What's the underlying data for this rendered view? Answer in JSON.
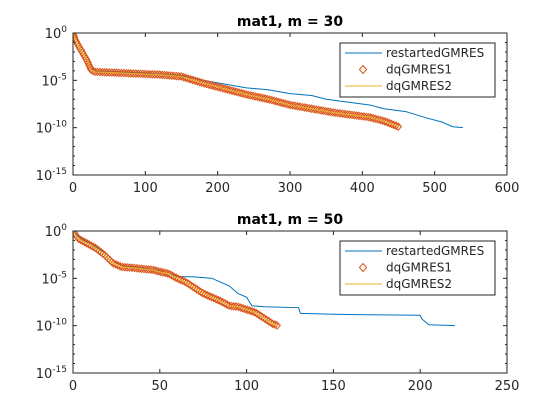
{
  "figure": {
    "background": "#ffffff"
  },
  "chart_data": [
    {
      "type": "line",
      "title": "mat1, m = 30",
      "xlabel": "",
      "ylabel": "",
      "y_scale": "log",
      "xlim": [
        0,
        600
      ],
      "ylim_exp": [
        -15,
        0
      ],
      "x_ticks": [
        "0",
        "100",
        "200",
        "300",
        "400",
        "500",
        "600"
      ],
      "x_tick_values": [
        0,
        100,
        200,
        300,
        400,
        500,
        600
      ],
      "y_ticks_exp": [
        "0",
        "-5",
        "-10",
        "-15"
      ],
      "y_tick_base": "10",
      "legend": {
        "position": "top-right",
        "entries": [
          "restartedGMRES",
          "dqGMRES1",
          "dqGMRES2"
        ]
      },
      "series": [
        {
          "name": "restartedGMRES",
          "style": "line",
          "color": "#0072BD",
          "points": [
            [
              0,
              0
            ],
            [
              3,
              -0.7
            ],
            [
              8,
              -1.4
            ],
            [
              14,
              -2.2
            ],
            [
              20,
              -3.0
            ],
            [
              25,
              -3.8
            ],
            [
              30,
              -4.05
            ],
            [
              60,
              -4.1
            ],
            [
              90,
              -4.2
            ],
            [
              120,
              -4.35
            ],
            [
              150,
              -4.5
            ],
            [
              180,
              -5.0
            ],
            [
              210,
              -5.4
            ],
            [
              240,
              -5.8
            ],
            [
              270,
              -6.0
            ],
            [
              300,
              -6.4
            ],
            [
              330,
              -6.6
            ],
            [
              350,
              -7.0
            ],
            [
              380,
              -7.3
            ],
            [
              410,
              -7.6
            ],
            [
              430,
              -8.0
            ],
            [
              460,
              -8.3
            ],
            [
              490,
              -9.0
            ],
            [
              510,
              -9.4
            ],
            [
              525,
              -9.9
            ],
            [
              539,
              -10.0
            ]
          ]
        },
        {
          "name": "dqGMRES1",
          "style": "markers",
          "color": "#D95319",
          "points": [
            [
              0,
              0
            ],
            [
              3,
              -0.7
            ],
            [
              8,
              -1.4
            ],
            [
              14,
              -2.2
            ],
            [
              20,
              -3.0
            ],
            [
              25,
              -3.9
            ],
            [
              30,
              -4.1
            ],
            [
              60,
              -4.2
            ],
            [
              90,
              -4.3
            ],
            [
              120,
              -4.4
            ],
            [
              150,
              -4.6
            ],
            [
              180,
              -5.3
            ],
            [
              210,
              -5.9
            ],
            [
              240,
              -6.5
            ],
            [
              270,
              -7.0
            ],
            [
              300,
              -7.6
            ],
            [
              330,
              -8.0
            ],
            [
              360,
              -8.4
            ],
            [
              390,
              -8.7
            ],
            [
              410,
              -8.9
            ],
            [
              430,
              -9.3
            ],
            [
              450,
              -9.9
            ]
          ]
        },
        {
          "name": "dqGMRES2",
          "style": "line",
          "color": "#EDB120",
          "points": [
            [
              0,
              0
            ],
            [
              3,
              -0.7
            ],
            [
              8,
              -1.4
            ],
            [
              14,
              -2.2
            ],
            [
              20,
              -3.0
            ],
            [
              25,
              -3.9
            ],
            [
              30,
              -4.1
            ],
            [
              60,
              -4.2
            ],
            [
              90,
              -4.3
            ],
            [
              120,
              -4.4
            ],
            [
              150,
              -4.6
            ],
            [
              180,
              -5.3
            ],
            [
              210,
              -5.9
            ],
            [
              240,
              -6.5
            ],
            [
              270,
              -7.0
            ],
            [
              300,
              -7.6
            ],
            [
              330,
              -8.0
            ],
            [
              360,
              -8.4
            ],
            [
              390,
              -8.7
            ],
            [
              410,
              -8.9
            ],
            [
              430,
              -9.3
            ],
            [
              450,
              -9.9
            ]
          ]
        }
      ]
    },
    {
      "type": "line",
      "title": "mat1, m = 50",
      "xlabel": "",
      "ylabel": "",
      "y_scale": "log",
      "xlim": [
        0,
        250
      ],
      "ylim_exp": [
        -15,
        0
      ],
      "x_ticks": [
        "0",
        "50",
        "100",
        "150",
        "200",
        "250"
      ],
      "x_tick_values": [
        0,
        50,
        100,
        150,
        200,
        250
      ],
      "y_ticks_exp": [
        "0",
        "-5",
        "-10",
        "-15"
      ],
      "y_tick_base": "10",
      "legend": {
        "position": "top-right",
        "entries": [
          "restartedGMRES",
          "dqGMRES1",
          "dqGMRES2"
        ]
      },
      "series": [
        {
          "name": "restartedGMRES",
          "style": "line",
          "color": "#0072BD",
          "points": [
            [
              0,
              0
            ],
            [
              5,
              -0.9
            ],
            [
              10,
              -1.3
            ],
            [
              15,
              -1.9
            ],
            [
              20,
              -2.5
            ],
            [
              25,
              -3.4
            ],
            [
              30,
              -3.7
            ],
            [
              40,
              -3.9
            ],
            [
              50,
              -4.2
            ],
            [
              55,
              -4.5
            ],
            [
              60,
              -4.8
            ],
            [
              70,
              -4.85
            ],
            [
              80,
              -5.0
            ],
            [
              90,
              -5.8
            ],
            [
              95,
              -6.6
            ],
            [
              100,
              -7.0
            ],
            [
              103,
              -7.9
            ],
            [
              110,
              -8.0
            ],
            [
              130,
              -8.1
            ],
            [
              131,
              -8.7
            ],
            [
              150,
              -8.8
            ],
            [
              170,
              -8.85
            ],
            [
              200,
              -8.9
            ],
            [
              201,
              -9.3
            ],
            [
              205,
              -9.9
            ],
            [
              220,
              -10.0
            ]
          ]
        },
        {
          "name": "dqGMRES1",
          "style": "markers",
          "color": "#D95319",
          "points": [
            [
              0,
              0
            ],
            [
              3,
              -0.8
            ],
            [
              8,
              -1.3
            ],
            [
              13,
              -1.8
            ],
            [
              18,
              -2.5
            ],
            [
              23,
              -3.4
            ],
            [
              28,
              -3.8
            ],
            [
              35,
              -3.9
            ],
            [
              40,
              -4.0
            ],
            [
              46,
              -4.1
            ],
            [
              50,
              -4.3
            ],
            [
              55,
              -4.5
            ],
            [
              60,
              -5.0
            ],
            [
              65,
              -5.4
            ],
            [
              70,
              -6.0
            ],
            [
              75,
              -6.6
            ],
            [
              80,
              -7.0
            ],
            [
              85,
              -7.4
            ],
            [
              90,
              -7.9
            ],
            [
              95,
              -8.0
            ],
            [
              100,
              -8.3
            ],
            [
              105,
              -8.6
            ],
            [
              110,
              -9.2
            ],
            [
              115,
              -9.8
            ],
            [
              118,
              -10.0
            ]
          ]
        },
        {
          "name": "dqGMRES2",
          "style": "line",
          "color": "#EDB120",
          "points": [
            [
              0,
              0
            ],
            [
              3,
              -0.8
            ],
            [
              8,
              -1.3
            ],
            [
              13,
              -1.8
            ],
            [
              18,
              -2.5
            ],
            [
              23,
              -3.4
            ],
            [
              28,
              -3.8
            ],
            [
              35,
              -3.9
            ],
            [
              40,
              -4.0
            ],
            [
              46,
              -4.1
            ],
            [
              50,
              -4.3
            ],
            [
              55,
              -4.5
            ],
            [
              60,
              -5.0
            ],
            [
              65,
              -5.4
            ],
            [
              70,
              -6.0
            ],
            [
              75,
              -6.6
            ],
            [
              80,
              -7.0
            ],
            [
              85,
              -7.4
            ],
            [
              90,
              -7.9
            ],
            [
              95,
              -8.0
            ],
            [
              100,
              -8.3
            ],
            [
              105,
              -8.6
            ],
            [
              110,
              -9.2
            ],
            [
              115,
              -9.8
            ],
            [
              118,
              -10.0
            ]
          ]
        }
      ]
    }
  ]
}
